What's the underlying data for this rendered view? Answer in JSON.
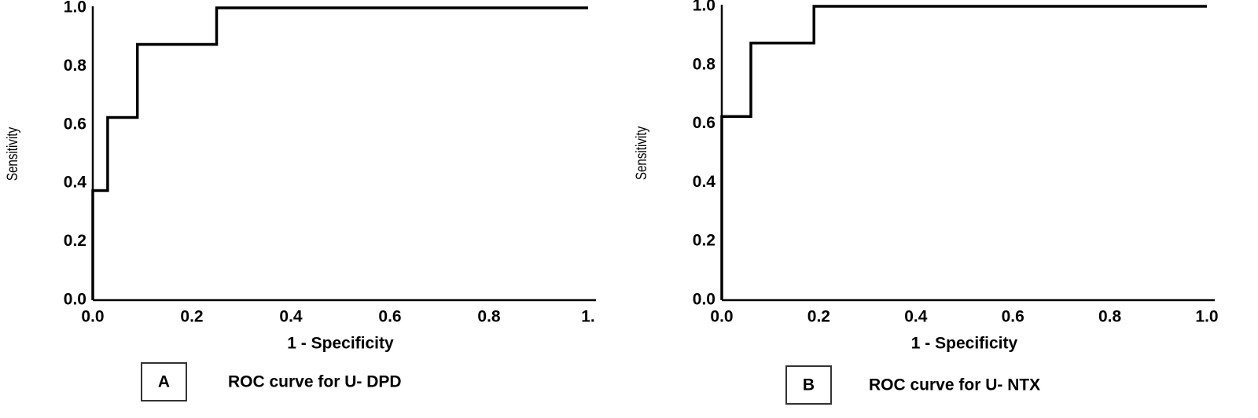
{
  "chart_data": [
    {
      "type": "line",
      "panel_label": "A",
      "title": "ROC curve for U- DPD",
      "xlabel": "1 - Specificity",
      "ylabel": "Sensitivity",
      "color": "#000000",
      "x": [
        0,
        0,
        0.03,
        0.03,
        0.09,
        0.09,
        0.25,
        0.25,
        1.0
      ],
      "values": [
        0,
        0.375,
        0.375,
        0.625,
        0.625,
        0.875,
        0.875,
        1.0,
        1.0
      ],
      "xlim": [
        0,
        1
      ],
      "ylim": [
        0,
        1
      ],
      "xticks": [
        {
          "value": 0,
          "label": "0.0"
        },
        {
          "value": 0.2,
          "label": "0.2"
        },
        {
          "value": 0.4,
          "label": "0.4"
        },
        {
          "value": 0.6,
          "label": "0.6"
        },
        {
          "value": 0.8,
          "label": "0.8"
        },
        {
          "value": 1,
          "label": "1."
        }
      ],
      "yticks": [
        {
          "value": 0,
          "label": "0.0"
        },
        {
          "value": 0.2,
          "label": "0.2"
        },
        {
          "value": 0.4,
          "label": "0.4"
        },
        {
          "value": 0.6,
          "label": "0.6"
        },
        {
          "value": 0.8,
          "label": "0.8"
        },
        {
          "value": 1,
          "label": "1.0"
        }
      ]
    },
    {
      "type": "line",
      "panel_label": "B",
      "title": "ROC curve for U- NTX",
      "xlabel": "1 - Specificity",
      "ylabel": "Sensitivity",
      "color": "#000000",
      "x": [
        0,
        0,
        0.06,
        0.06,
        0.19,
        0.19,
        1.0
      ],
      "values": [
        0,
        0.625,
        0.625,
        0.875,
        0.875,
        1.0,
        1.0
      ],
      "xlim": [
        0,
        1
      ],
      "ylim": [
        0,
        1
      ],
      "xticks": [
        {
          "value": 0,
          "label": "0.0"
        },
        {
          "value": 0.2,
          "label": "0.2"
        },
        {
          "value": 0.4,
          "label": "0.4"
        },
        {
          "value": 0.6,
          "label": "0.6"
        },
        {
          "value": 0.8,
          "label": "0.8"
        },
        {
          "value": 1,
          "label": "1.0"
        }
      ],
      "yticks": [
        {
          "value": 0,
          "label": "0.0"
        },
        {
          "value": 0.2,
          "label": "0.2"
        },
        {
          "value": 0.4,
          "label": "0.4"
        },
        {
          "value": 0.6,
          "label": "0.6"
        },
        {
          "value": 0.8,
          "label": "0.8"
        },
        {
          "value": 1,
          "label": "1.0"
        }
      ]
    }
  ]
}
